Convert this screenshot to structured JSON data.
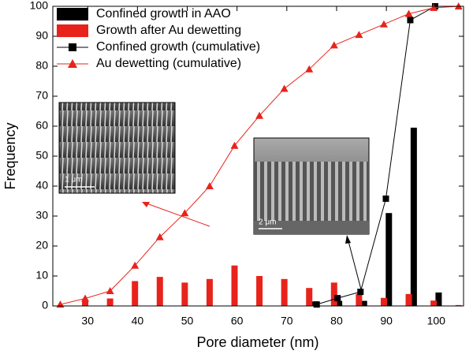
{
  "chart_data": {
    "type": "combo",
    "xlabel": "Pore diameter (nm)",
    "ylabel": "Frequency",
    "xlim": [
      23,
      105.5
    ],
    "ylim": [
      0,
      100
    ],
    "xticks": [
      30,
      40,
      50,
      60,
      70,
      80,
      90,
      100
    ],
    "yticks": [
      0,
      10,
      20,
      30,
      40,
      50,
      60,
      70,
      80,
      90,
      100
    ],
    "legend": "upper left",
    "annotations": [
      "1 μm",
      "2 μm"
    ],
    "series": [
      {
        "name": "Confined growth in AAO",
        "type": "bar",
        "color": "#000000",
        "x": [
          75.5,
          80.5,
          85.5,
          90.5,
          95.5,
          100.5
        ],
        "values": [
          1.5,
          1.7,
          1.7,
          31,
          59.5,
          4.5
        ]
      },
      {
        "name": "Growth after Au dewetting",
        "type": "bar",
        "color": "#e8231c",
        "x": [
          29.5,
          34.5,
          39.5,
          44.5,
          49.5,
          54.5,
          59.5,
          64.5,
          69.5,
          74.5,
          79.5,
          84.5,
          89.5,
          94.5,
          99.5,
          104.5
        ],
        "values": [
          2,
          2.5,
          8.3,
          9.7,
          7.8,
          9,
          13.5,
          10,
          9,
          6,
          7.8,
          4,
          2.7,
          4,
          1.8,
          0.3
        ]
      },
      {
        "name": "Confined growth (cumulative)",
        "type": "line",
        "marker": "square",
        "color": "#000000",
        "x": [
          76,
          80.2,
          84.8,
          89.9,
          94.8,
          99.8
        ],
        "values": [
          0.5,
          2.6,
          4.7,
          35.8,
          95.4,
          100
        ]
      },
      {
        "name": "Au dewetting (cumulative)",
        "type": "line",
        "marker": "triangle",
        "color": "#e8231c",
        "x": [
          24.5,
          29.5,
          34.5,
          39.5,
          44.5,
          49.5,
          54.5,
          59.5,
          64.5,
          69.5,
          74.5,
          79.5,
          84.5,
          89.5,
          94.5,
          99.5,
          104.5
        ],
        "values": [
          0.5,
          2.5,
          5,
          13.5,
          23,
          31,
          40,
          53.5,
          63.5,
          72.5,
          79,
          87,
          90.5,
          94,
          97.5,
          99.5,
          100
        ]
      }
    ]
  }
}
